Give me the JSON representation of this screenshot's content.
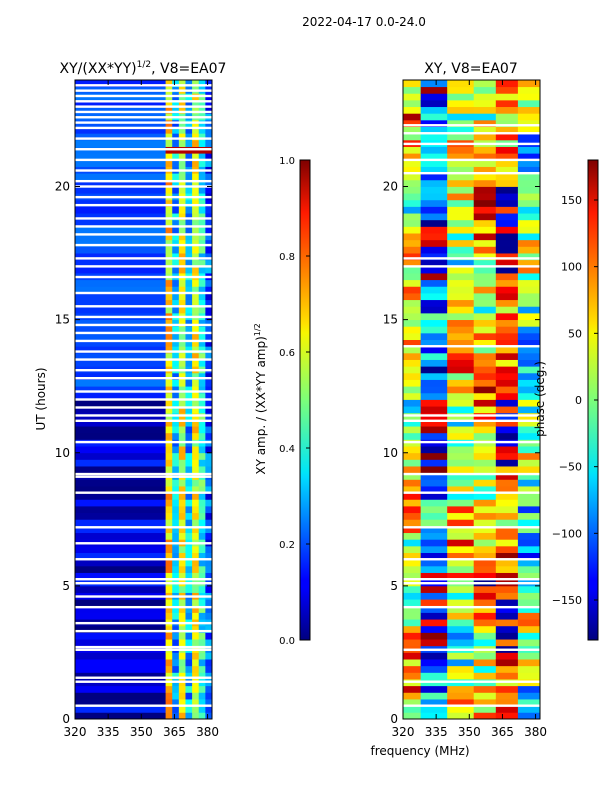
{
  "figure": {
    "suptitle": "2022-04-17 0.0-24.0",
    "xlabel": "frequency (MHz)"
  },
  "chart_data": [
    {
      "type": "heatmap",
      "title_main": "XY/(XX*YY)",
      "title_sup": "1/2",
      "title_suffix": ", V8=EA07",
      "xlim": [
        320,
        382
      ],
      "x_ticks": [
        320,
        335,
        350,
        365,
        380
      ],
      "ylim": [
        0,
        24
      ],
      "ylabel": "UT (hours)",
      "y_ticks": [
        0,
        5,
        10,
        15,
        20
      ],
      "colorbar": {
        "label_main": "XY amp. / (XX*YY amp)",
        "label_sup": "1/2",
        "range": [
          0.0,
          1.0
        ],
        "ticks": [
          "0.0",
          "0.2",
          "0.4",
          "0.6",
          "0.8",
          "1.0"
        ],
        "tick_values": [
          0.0,
          0.2,
          0.4,
          0.6,
          0.8,
          1.0
        ],
        "colormap": "jet"
      },
      "freq_bands": [
        {
          "range": [
            320,
            361
          ],
          "level": 0.06,
          "description": "low background"
        },
        {
          "range": [
            361,
            364
          ],
          "level": 0.65,
          "description": "bright band"
        },
        {
          "range": [
            364,
            367
          ],
          "level": 0.3,
          "description": "moderate"
        },
        {
          "range": [
            367,
            370
          ],
          "level": 0.6,
          "description": "bright band"
        },
        {
          "range": [
            370,
            373
          ],
          "level": 0.3,
          "description": "moderate"
        },
        {
          "range": [
            373,
            376
          ],
          "level": 0.6,
          "description": "bright band"
        },
        {
          "range": [
            376,
            379
          ],
          "level": 0.4,
          "description": "moderate"
        },
        {
          "range": [
            379,
            382
          ],
          "level": 0.2,
          "description": "low"
        }
      ],
      "flag_hours": [
        0.5,
        1.4,
        1.55,
        2.6,
        2.7,
        3.3,
        3.6,
        4.2,
        4.6,
        5.1,
        5.25,
        6.0,
        6.6,
        7.2,
        8.5,
        9.1,
        9.2,
        10.4,
        11.2,
        11.4,
        11.7,
        12.0,
        12.3,
        12.8,
        13.1,
        13.5,
        13.8,
        14.2,
        14.5,
        14.8,
        15.1,
        15.5,
        16.0,
        16.6,
        17.0,
        17.3,
        17.8,
        18.2,
        18.5,
        18.8,
        19.3,
        19.6,
        20.0,
        20.2,
        20.6,
        21.0,
        21.4,
        21.8,
        22.2,
        22.4,
        22.6,
        22.8,
        23.0,
        23.2,
        23.4,
        23.6,
        23.8
      ],
      "high_amp_hours": [
        21.2,
        21.5
      ]
    },
    {
      "type": "heatmap",
      "title": "XY, V8=EA07",
      "xlim": [
        320,
        382
      ],
      "x_ticks": [
        320,
        335,
        350,
        365,
        380
      ],
      "ylim": [
        0,
        24
      ],
      "y_ticks": [
        0,
        5,
        10,
        15,
        20
      ],
      "colorbar": {
        "label": "phase (deg.)",
        "range": [
          -180,
          180
        ],
        "ticks": [
          "150",
          "100",
          "50",
          "0",
          "−50",
          "−100",
          "−150"
        ],
        "tick_values": [
          150,
          100,
          50,
          0,
          -50,
          -100,
          -150
        ],
        "colormap": "jet"
      },
      "freq_bands": [
        {
          "range": [
            320,
            328
          ],
          "phase": 40
        },
        {
          "range": [
            328,
            340
          ],
          "phase": -120
        },
        {
          "range": [
            340,
            352
          ],
          "phase": 30
        },
        {
          "range": [
            352,
            362
          ],
          "phase": 60
        },
        {
          "range": [
            362,
            372
          ],
          "phase": 120
        },
        {
          "range": [
            372,
            382
          ],
          "phase": -20
        }
      ],
      "flag_hours": [
        0.5,
        1.4,
        2.6,
        4.2,
        5.1,
        5.25,
        6.0,
        7.2,
        8.5,
        9.2,
        10.4,
        11.2,
        11.4,
        14.0,
        17.0,
        17.3,
        20.5,
        21.0,
        21.6,
        22.0,
        22.3
      ]
    }
  ]
}
